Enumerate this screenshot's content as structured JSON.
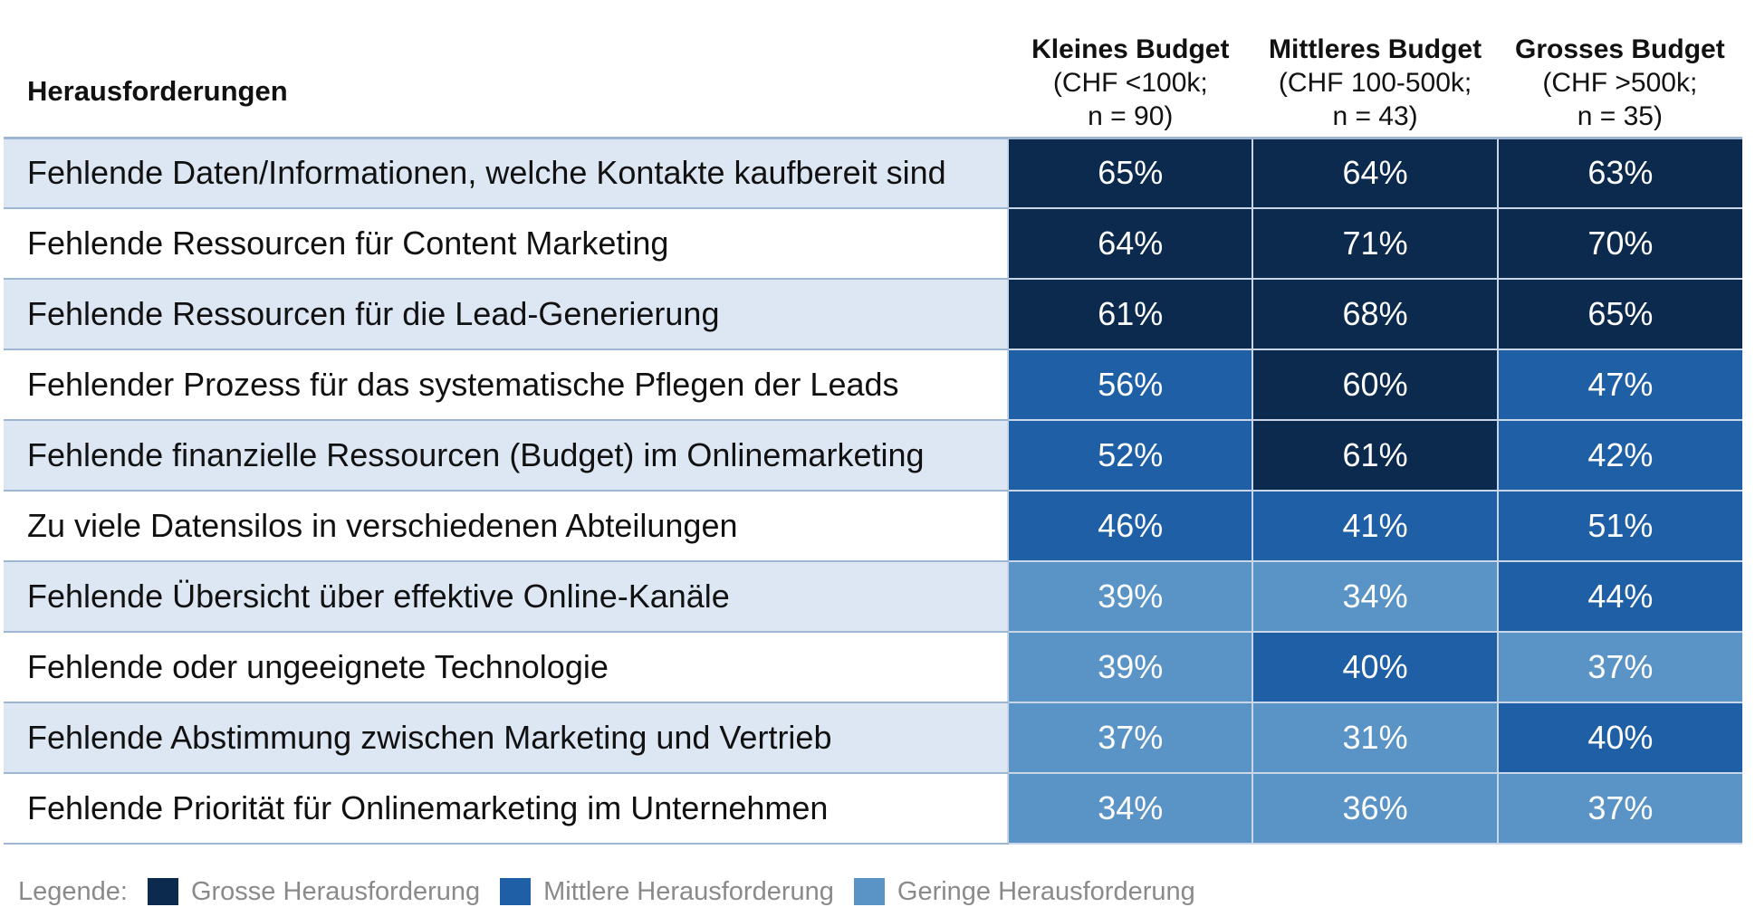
{
  "colors": {
    "Grosse": "#0b2a4e",
    "Mittlere": "#1f5fa6",
    "Geringe": "#5a94c6"
  },
  "chart_data": {
    "type": "table",
    "row_header": "Herausforderungen",
    "columns": [
      {
        "title": "Kleines Budget",
        "sub1": "(CHF <100k;",
        "sub2": "n = 90)"
      },
      {
        "title": "Mittleres Budget",
        "sub1": "(CHF 100-500k;",
        "sub2": "n = 43)"
      },
      {
        "title": "Grosses Budget",
        "sub1": "(CHF >500k;",
        "sub2": "n = 35)"
      }
    ],
    "rows": [
      {
        "label": "Fehlende Daten/Informationen, welche Kontakte kaufbereit sind",
        "values": [
          "65%",
          "64%",
          "63%"
        ],
        "levels": [
          "Grosse",
          "Grosse",
          "Grosse"
        ]
      },
      {
        "label": "Fehlende Ressourcen für Content Marketing",
        "values": [
          "64%",
          "71%",
          "70%"
        ],
        "levels": [
          "Grosse",
          "Grosse",
          "Grosse"
        ]
      },
      {
        "label": "Fehlende Ressourcen für die Lead-Generierung",
        "values": [
          "61%",
          "68%",
          "65%"
        ],
        "levels": [
          "Grosse",
          "Grosse",
          "Grosse"
        ]
      },
      {
        "label": "Fehlender Prozess für das systematische Pflegen der Leads",
        "values": [
          "56%",
          "60%",
          "47%"
        ],
        "levels": [
          "Mittlere",
          "Grosse",
          "Mittlere"
        ]
      },
      {
        "label": "Fehlende finanzielle Ressourcen (Budget) im Onlinemarketing",
        "values": [
          "52%",
          "61%",
          "42%"
        ],
        "levels": [
          "Mittlere",
          "Grosse",
          "Mittlere"
        ]
      },
      {
        "label": "Zu viele Datensilos in verschiedenen Abteilungen",
        "values": [
          "46%",
          "41%",
          "51%"
        ],
        "levels": [
          "Mittlere",
          "Mittlere",
          "Mittlere"
        ]
      },
      {
        "label": "Fehlende Übersicht über effektive Online-Kanäle",
        "values": [
          "39%",
          "34%",
          "44%"
        ],
        "levels": [
          "Geringe",
          "Geringe",
          "Mittlere"
        ]
      },
      {
        "label": "Fehlende oder ungeeignete Technologie",
        "values": [
          "39%",
          "40%",
          "37%"
        ],
        "levels": [
          "Geringe",
          "Mittlere",
          "Geringe"
        ]
      },
      {
        "label": "Fehlende Abstimmung zwischen Marketing und Vertrieb",
        "values": [
          "37%",
          "31%",
          "40%"
        ],
        "levels": [
          "Geringe",
          "Geringe",
          "Mittlere"
        ]
      },
      {
        "label": "Fehlende Priorität für Onlinemarketing im Unternehmen",
        "values": [
          "34%",
          "36%",
          "37%"
        ],
        "levels": [
          "Geringe",
          "Geringe",
          "Geringe"
        ]
      }
    ],
    "legend": {
      "title": "Legende:",
      "items": [
        {
          "key": "Grosse",
          "label": "Grosse Herausforderung"
        },
        {
          "key": "Mittlere",
          "label": "Mittlere Herausforderung"
        },
        {
          "key": "Geringe",
          "label": "Geringe Herausforderung"
        }
      ]
    }
  }
}
